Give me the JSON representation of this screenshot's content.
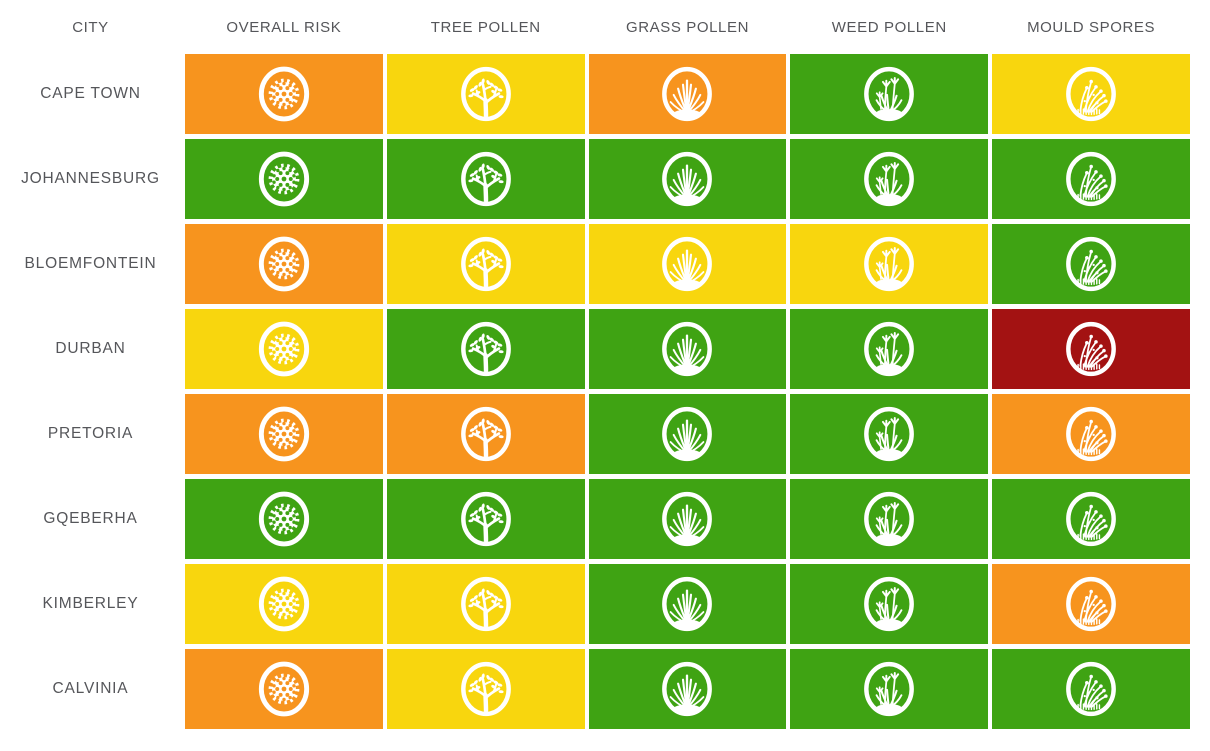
{
  "chart_data": {
    "type": "heatmap",
    "columns": [
      {
        "key": "city",
        "label": "CITY",
        "icon": null
      },
      {
        "key": "overall-risk",
        "label": "OVERALL RISK",
        "icon": "pollen-grain-icon"
      },
      {
        "key": "tree-pollen",
        "label": "TREE POLLEN",
        "icon": "tree-icon"
      },
      {
        "key": "grass-pollen",
        "label": "GRASS POLLEN",
        "icon": "grass-icon"
      },
      {
        "key": "weed-pollen",
        "label": "WEED POLLEN",
        "icon": "weed-icon"
      },
      {
        "key": "mould-spores",
        "label": "MOULD SPORES",
        "icon": "mould-spores-icon"
      }
    ],
    "rows": [
      "CAPE TOWN",
      "JOHANNESBURG",
      "BLOEMFONTEIN",
      "DURBAN",
      "PRETORIA",
      "GQEBERHA",
      "KIMBERLEY",
      "CALVINIA"
    ],
    "values": [
      [
        "high",
        "moderate",
        "high",
        "low",
        "moderate"
      ],
      [
        "low",
        "low",
        "low",
        "low",
        "low"
      ],
      [
        "high",
        "moderate",
        "moderate",
        "moderate",
        "low"
      ],
      [
        "moderate",
        "low",
        "low",
        "low",
        "very_high"
      ],
      [
        "high",
        "high",
        "low",
        "low",
        "high"
      ],
      [
        "low",
        "low",
        "low",
        "low",
        "low"
      ],
      [
        "moderate",
        "moderate",
        "low",
        "low",
        "high"
      ],
      [
        "high",
        "moderate",
        "low",
        "low",
        "low"
      ]
    ],
    "level_colors": {
      "low": "#3FA313",
      "moderate": "#F8D60E",
      "high": "#F7941E",
      "very_high": "#A31212"
    },
    "icon_color": "#FFFFFF",
    "header_text_color": "#55565A",
    "legend_position": "none",
    "grid_gaps": "white"
  }
}
